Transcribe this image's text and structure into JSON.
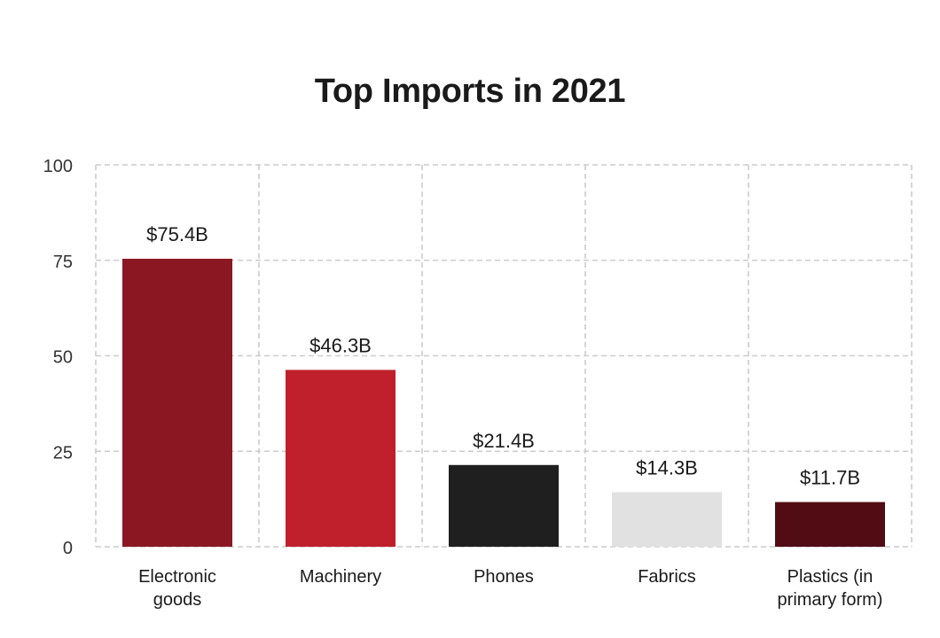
{
  "chart_data": {
    "type": "bar",
    "title": "Top Imports in 2021",
    "xlabel": "",
    "ylabel": "",
    "ylim": [
      0,
      100
    ],
    "yticks": [
      0,
      25,
      50,
      75,
      100
    ],
    "categories": [
      [
        "Electronic",
        "goods"
      ],
      [
        "Machinery"
      ],
      [
        "Phones"
      ],
      [
        "Fabrics"
      ],
      [
        "Plastics (in",
        "primary form)"
      ]
    ],
    "values": [
      75.4,
      46.3,
      21.4,
      14.3,
      11.7
    ],
    "data_labels": [
      "$75.4B",
      "$46.3B",
      "$21.4B",
      "$14.3B",
      "$11.7B"
    ],
    "colors": [
      "#8b1722",
      "#c01f2c",
      "#1f1f1f",
      "#e1e1e1",
      "#520c14"
    ],
    "grid": true,
    "grid_style": "dashed",
    "grid_color": "#cccccc",
    "legend": "none"
  }
}
